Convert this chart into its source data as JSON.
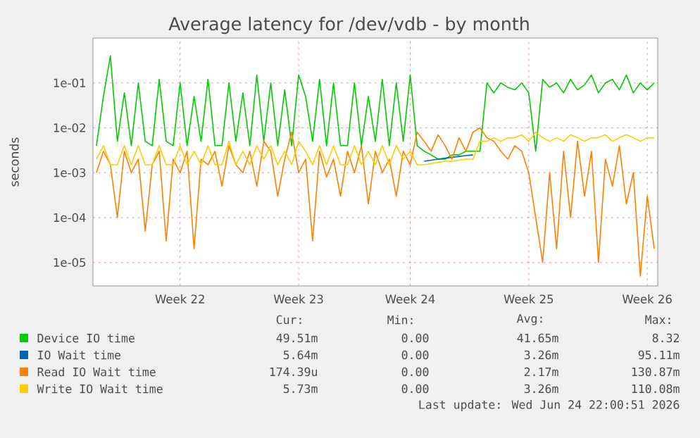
{
  "chart_data": {
    "type": "line",
    "title": "Average latency for /dev/vdb - by month",
    "ylabel": "seconds",
    "log": "y",
    "grid": true,
    "legend": "bottom",
    "ylim": [
      3e-06,
      1
    ],
    "yticks": [
      {
        "value": 1e-05,
        "label": "1e-05"
      },
      {
        "value": 0.0001,
        "label": "1e-04"
      },
      {
        "value": 0.001,
        "label": "1e-03"
      },
      {
        "value": 0.01,
        "label": "1e-02"
      },
      {
        "value": 0.1,
        "label": "1e-01"
      }
    ],
    "categories": [
      null,
      null,
      null,
      null,
      null,
      null,
      null,
      null,
      null,
      null,
      null,
      null,
      "Week 22",
      null,
      null,
      null,
      null,
      null,
      null,
      null,
      null,
      null,
      null,
      null,
      null,
      null,
      null,
      null,
      null,
      "Week 23",
      null,
      null,
      null,
      null,
      null,
      null,
      null,
      null,
      null,
      null,
      null,
      null,
      null,
      null,
      null,
      "Week 24",
      null,
      null,
      null,
      null,
      null,
      null,
      null,
      null,
      null,
      null,
      null,
      null,
      null,
      null,
      null,
      null,
      "Week 25",
      null,
      null,
      null,
      null,
      null,
      null,
      null,
      null,
      null,
      null,
      null,
      null,
      null,
      null,
      null,
      null,
      "Week 26",
      null
    ],
    "series": [
      {
        "name": "Device IO time",
        "color": "#00cc00",
        "values": [
          0.004,
          0.05,
          0.4,
          0.005,
          0.06,
          0.004,
          0.1,
          0.005,
          0.004,
          0.12,
          0.005,
          0.004,
          0.1,
          0.004,
          0.05,
          0.005,
          0.12,
          0.004,
          0.004,
          0.1,
          0.005,
          0.06,
          0.004,
          0.15,
          0.005,
          0.1,
          0.004,
          0.07,
          0.004,
          0.15,
          0.05,
          0.005,
          0.12,
          0.004,
          0.1,
          0.004,
          0.004,
          0.1,
          0.004,
          0.05,
          0.005,
          0.12,
          0.004,
          0.1,
          0.005,
          0.15,
          0.004,
          0.003,
          0.0025,
          0.002,
          0.002,
          0.0025,
          0.0025,
          0.003,
          0.003,
          0.003,
          0.1,
          0.06,
          0.1,
          0.08,
          0.07,
          0.1,
          0.06,
          0.003,
          0.12,
          0.08,
          0.1,
          0.06,
          0.12,
          0.07,
          0.09,
          0.15,
          0.06,
          0.1,
          0.12,
          0.07,
          0.15,
          0.06,
          0.1,
          0.07,
          0.1
        ]
      },
      {
        "name": "IO Wait time",
        "color": "#0066b3",
        "values": [
          null,
          null,
          null,
          null,
          null,
          null,
          null,
          null,
          null,
          null,
          null,
          null,
          null,
          null,
          null,
          null,
          null,
          null,
          null,
          null,
          null,
          null,
          null,
          null,
          null,
          null,
          null,
          null,
          null,
          null,
          null,
          null,
          null,
          null,
          null,
          null,
          null,
          null,
          null,
          null,
          null,
          null,
          null,
          null,
          null,
          null,
          null,
          0.0018,
          0.0019,
          0.002,
          0.0021,
          0.0022,
          0.0023,
          0.0024,
          0.0025,
          null,
          null,
          null,
          null,
          null,
          null,
          null,
          null,
          null,
          null,
          null,
          null,
          null,
          null,
          null,
          null,
          null,
          null,
          null,
          null,
          null,
          null,
          null,
          null,
          null,
          null
        ]
      },
      {
        "name": "Read IO Wait time",
        "color": "#ff8000",
        "values": [
          0.001,
          0.003,
          0.0015,
          0.0001,
          0.003,
          0.001,
          0.002,
          5e-05,
          0.0015,
          0.003,
          3e-05,
          0.002,
          0.001,
          0.003,
          2e-05,
          0.002,
          0.0015,
          0.003,
          0.0005,
          0.004,
          0.0015,
          0.001,
          0.003,
          0.0005,
          0.005,
          0.003,
          0.0003,
          0.002,
          0.008,
          0.001,
          0.002,
          3e-05,
          0.003,
          0.0008,
          0.002,
          0.0003,
          0.003,
          0.001,
          0.004,
          0.0002,
          0.003,
          0.001,
          0.002,
          0.0003,
          0.003,
          0.0015,
          0.008,
          0.005,
          0.003,
          0.007,
          0.004,
          0.002,
          0.006,
          0.003,
          0.008,
          0.01,
          0.006,
          0.005,
          0.003,
          0.002,
          0.004,
          0.003,
          0.001,
          0.0001,
          1e-05,
          0.001,
          2e-05,
          0.003,
          0.0001,
          0.005,
          0.0003,
          0.003,
          1e-05,
          0.002,
          0.0005,
          0.004,
          0.0002,
          0.001,
          5e-06,
          0.0003,
          2e-05
        ]
      },
      {
        "name": "Write IO Wait time",
        "color": "#ffcc00",
        "values": [
          0.002,
          0.004,
          0.0015,
          0.0015,
          0.004,
          0.0015,
          0.004,
          0.0015,
          0.0015,
          0.004,
          0.0015,
          0.0015,
          0.004,
          0.0015,
          0.003,
          0.0015,
          0.004,
          0.0015,
          0.0015,
          0.005,
          0.0015,
          0.003,
          0.0015,
          0.004,
          0.002,
          0.004,
          0.0015,
          0.003,
          0.0015,
          0.005,
          0.003,
          0.0015,
          0.004,
          0.0015,
          0.004,
          0.0015,
          0.0015,
          0.004,
          0.0015,
          0.003,
          0.0015,
          0.004,
          0.0015,
          0.004,
          0.002,
          0.003,
          0.0015,
          0.0015,
          0.0016,
          0.0017,
          0.0018,
          0.0018,
          0.0019,
          0.002,
          0.002,
          0.005,
          0.005,
          0.006,
          0.005,
          0.006,
          0.006,
          0.007,
          0.005,
          0.008,
          0.006,
          0.005,
          0.006,
          0.005,
          0.007,
          0.006,
          0.005,
          0.006,
          0.006,
          0.007,
          0.005,
          0.006,
          0.007,
          0.006,
          0.005,
          0.006,
          0.006
        ]
      }
    ],
    "annotations": [
      "Cur:",
      "Min:",
      "Avg:",
      "Max:",
      "49.51m",
      "0.00",
      "41.65m",
      "8.32",
      "5.64m",
      "0.00",
      "3.26m",
      "95.11m",
      "174.39u",
      "0.00",
      "2.17m",
      "130.87m",
      "5.73m",
      "0.00",
      "3.26m",
      "110.08m",
      "Last update: Wed Jun 24 22:00:51 2026"
    ]
  }
}
